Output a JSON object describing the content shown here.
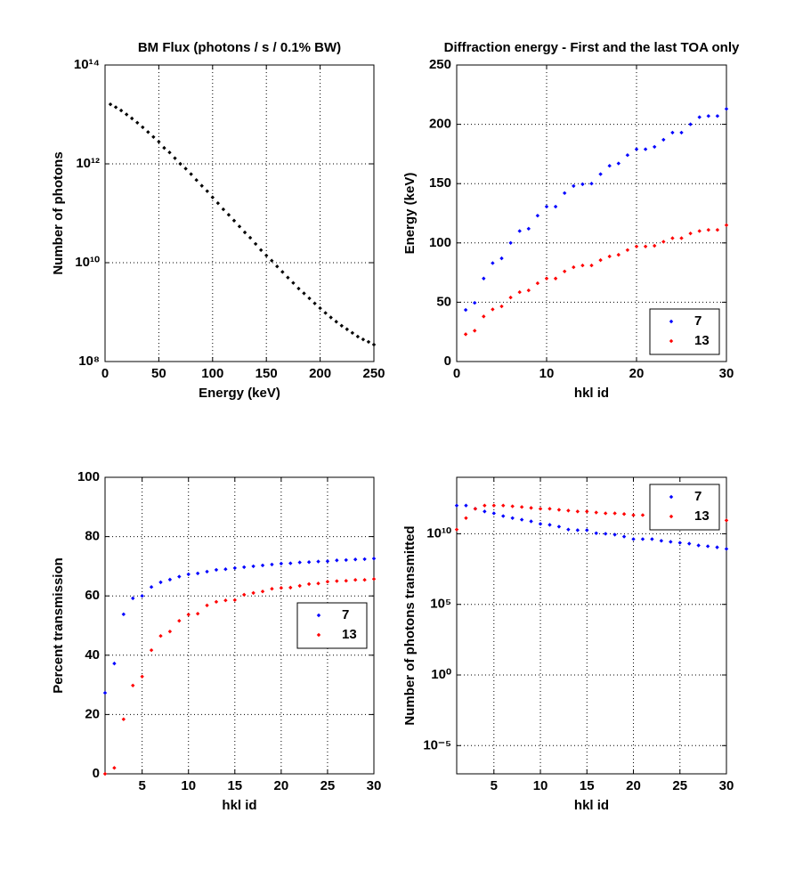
{
  "chart_data": [
    {
      "type": "scatter",
      "title": "BM Flux (photons / s / 0.1% BW)",
      "x_label": "Energy (keV)",
      "y_label": "Number of photons",
      "x": [
        5,
        10,
        15,
        20,
        25,
        30,
        35,
        40,
        45,
        50,
        55,
        60,
        65,
        70,
        75,
        80,
        85,
        90,
        95,
        100,
        105,
        110,
        115,
        120,
        125,
        130,
        135,
        140,
        145,
        150,
        155,
        160,
        165,
        170,
        175,
        180,
        185,
        190,
        195,
        200,
        205,
        210,
        215,
        220,
        225,
        230,
        235,
        240,
        245,
        250
      ],
      "values": [
        16000000000000.0,
        14000000000000.0,
        12000000000000.0,
        10000000000000.0,
        8300000000000.0,
        6800000000000.0,
        5500000000000.0,
        4400000000000.0,
        3500000000000.0,
        2800000000000.0,
        2100000000000.0,
        1700000000000.0,
        1300000000000.0,
        1000000000000.0,
        800000000000.0,
        620000000000.0,
        470000000000.0,
        360000000000.0,
        280000000000.0,
        210000000000.0,
        160000000000.0,
        120000000000.0,
        93000000000.0,
        71000000000.0,
        54000000000.0,
        41000000000.0,
        32000000000.0,
        24000000000.0,
        18000000000.0,
        14000000000.0,
        11000000000.0,
        8400000000.0,
        6500000000.0,
        5000000000.0,
        3900000000.0,
        3000000000.0,
        2400000000.0,
        1900000000.0,
        1500000000.0,
        1200000000.0,
        960000000.0,
        780000000.0,
        640000000.0,
        530000000.0,
        450000000.0,
        380000000.0,
        320000000.0,
        280000000.0,
        250000000.0,
        220000000.0
      ],
      "color": "#000000",
      "xlim": [
        0,
        250
      ],
      "xticks": [
        0,
        50,
        100,
        150,
        200,
        250
      ],
      "ylim": [
        100000000.0,
        100000000000000.0
      ],
      "log_y": true,
      "yticks": [
        {
          "value": 100000000.0,
          "label": "10⁸"
        },
        {
          "value": 10000000000.0,
          "label": "10¹⁰"
        },
        {
          "value": 1000000000000.0,
          "label": "10¹²"
        },
        {
          "value": 100000000000000.0,
          "label": "10¹⁴"
        }
      ],
      "grid": true
    },
    {
      "type": "scatter",
      "title": "Diffraction energy - First and the last TOA only",
      "x_label": "hkl id",
      "y_label": "Energy (keV)",
      "x": [
        1,
        2,
        3,
        4,
        5,
        6,
        7,
        8,
        9,
        10,
        11,
        12,
        13,
        14,
        15,
        16,
        17,
        18,
        19,
        20,
        21,
        22,
        23,
        24,
        25,
        26,
        27,
        28,
        29,
        30
      ],
      "series": [
        {
          "name": "7",
          "color": "#0000ff",
          "values": [
            43.5,
            49.5,
            70,
            83,
            87,
            100,
            110,
            112,
            123,
            130.6,
            130.6,
            142,
            148,
            149.5,
            150,
            158,
            165,
            167,
            174,
            179,
            179,
            181,
            187,
            193,
            193,
            200,
            206,
            207,
            207,
            213
          ]
        },
        {
          "name": "13",
          "color": "#ff0000",
          "values": [
            23,
            26,
            38,
            44,
            46.5,
            54,
            58.5,
            60,
            66,
            70,
            70,
            76,
            79.5,
            81,
            81,
            85.5,
            88.6,
            90,
            94,
            97,
            97,
            97.6,
            101,
            104,
            104,
            108,
            110,
            111,
            111,
            115
          ]
        }
      ],
      "xlim": [
        0,
        30
      ],
      "xticks": [
        0,
        10,
        20,
        30
      ],
      "ylim": [
        0,
        250
      ],
      "yticks": [
        0,
        50,
        100,
        150,
        200,
        250
      ],
      "grid": true,
      "legend": "lower right"
    },
    {
      "type": "scatter",
      "x_label": "hkl id",
      "y_label": "Percent transmission",
      "x": [
        1,
        2,
        3,
        4,
        5,
        6,
        7,
        8,
        9,
        10,
        11,
        12,
        13,
        14,
        15,
        16,
        17,
        18,
        19,
        20,
        21,
        22,
        23,
        24,
        25,
        26,
        27,
        28,
        29,
        30
      ],
      "series": [
        {
          "name": "7",
          "color": "#0000ff",
          "values": [
            27.3,
            37.2,
            53.8,
            59.2,
            60,
            63,
            64.6,
            65.5,
            66.5,
            67.3,
            67.6,
            68.2,
            68.8,
            69,
            69.4,
            69.7,
            70,
            70.3,
            70.6,
            70.9,
            71,
            71.3,
            71.4,
            71.6,
            71.7,
            72,
            72.1,
            72.3,
            72.4,
            72.6
          ]
        },
        {
          "name": "13",
          "color": "#ff0000",
          "values": [
            0,
            2,
            18.4,
            29.8,
            32.8,
            41.7,
            46.5,
            48,
            51.6,
            53.7,
            54,
            56.8,
            58,
            58.5,
            58.6,
            60.4,
            61,
            61.5,
            62.4,
            62.7,
            62.8,
            63.4,
            64,
            64.2,
            64.8,
            65,
            65.1,
            65.4,
            65.4,
            65.7
          ]
        }
      ],
      "xlim": [
        1,
        30
      ],
      "xticks": [
        5,
        10,
        15,
        20,
        25,
        30
      ],
      "ylim": [
        0,
        100
      ],
      "yticks": [
        0,
        20,
        40,
        60,
        80,
        100
      ],
      "grid": true,
      "legend": "center right"
    },
    {
      "type": "scatter",
      "x_label": "hkl id",
      "y_label": "Number of photons transmitted",
      "x": [
        1,
        2,
        3,
        4,
        5,
        6,
        7,
        8,
        9,
        10,
        11,
        12,
        13,
        14,
        15,
        16,
        17,
        18,
        19,
        20,
        21,
        22,
        23,
        24,
        25,
        26,
        27,
        28,
        29,
        30
      ],
      "series": [
        {
          "name": "7",
          "color": "#0000ff",
          "values": [
            1000000000000.0,
            1000000000000.0,
            590000000000.0,
            380000000000.0,
            280000000000.0,
            180000000000.0,
            130000000000.0,
            100000000000.0,
            76000000000.0,
            50000000000.0,
            43000000000.0,
            32000000000.0,
            20000000000.0,
            18000000000.0,
            18000000000.0,
            11000000000.0,
            10000000000.0,
            8700000000.0,
            6300000000.0,
            4200000000.0,
            4200000000.0,
            4200000000.0,
            3200000000.0,
            2700000000.0,
            2300000000.0,
            2000000000.0,
            1500000000.0,
            1300000000.0,
            1100000000.0,
            850000000.0
          ]
        },
        {
          "name": "13",
          "color": "#ff0000",
          "values": [
            20000000000.0,
            130000000000.0,
            590000000000.0,
            1000000000000.0,
            1000000000000.0,
            1000000000000.0,
            890000000000.0,
            790000000000.0,
            680000000000.0,
            590000000000.0,
            590000000000.0,
            500000000000.0,
            440000000000.0,
            380000000000.0,
            380000000000.0,
            320000000000.0,
            280000000000.0,
            280000000000.0,
            250000000000.0,
            210000000000.0,
            210000000000.0,
            210000000000.0,
            180000000000.0,
            180000000000.0,
            160000000000.0,
            130000000000.0,
            130000000000.0,
            120000000000.0,
            120000000000.0,
            89000000000.0
          ]
        }
      ],
      "xlim": [
        1,
        30
      ],
      "xticks": [
        5,
        10,
        15,
        20,
        25,
        30
      ],
      "ylim": [
        1e-07,
        100000000000000.0
      ],
      "log_y": true,
      "yticks": [
        {
          "value": 1e-05,
          "label": "10⁻⁵"
        },
        {
          "value": 1,
          "label": "10⁰"
        },
        {
          "value": 100000.0,
          "label": "10⁵"
        },
        {
          "value": 10000000000.0,
          "label": "10¹⁰"
        }
      ],
      "grid": true,
      "legend": "upper right"
    }
  ]
}
